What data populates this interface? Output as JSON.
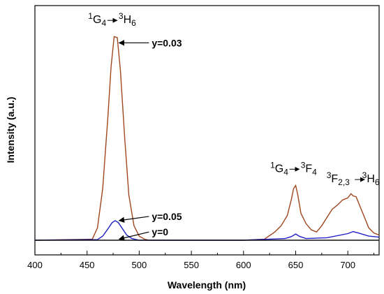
{
  "chart_data": {
    "type": "line",
    "title": "",
    "xlabel": "Wavelength (nm)",
    "ylabel": "Intensity (a.u.)",
    "xlim": [
      400,
      730
    ],
    "ylim": [
      0,
      1.0
    ],
    "xticks": [
      400,
      450,
      500,
      550,
      600,
      650,
      700
    ],
    "yticks_shown": false,
    "grid": false,
    "legend": "none",
    "series": [
      {
        "name": "y=0.03",
        "color": "#a0461e",
        "x": [
          400,
          455,
          460,
          465,
          470,
          473,
          476,
          479,
          482,
          486,
          490,
          495,
          500,
          505,
          510,
          520,
          600,
          620,
          630,
          636,
          642,
          646,
          648,
          650,
          652,
          655,
          660,
          665,
          670,
          675,
          680,
          685,
          690,
          695,
          700,
          703,
          705,
          708,
          712,
          716,
          720,
          725,
          730
        ],
        "y": [
          0.0,
          0.005,
          0.06,
          0.25,
          0.6,
          0.84,
          0.985,
          0.98,
          0.82,
          0.5,
          0.22,
          0.07,
          0.02,
          0.005,
          0.0,
          0.0,
          0.0,
          0.005,
          0.04,
          0.07,
          0.12,
          0.2,
          0.25,
          0.265,
          0.22,
          0.13,
          0.08,
          0.05,
          0.04,
          0.07,
          0.11,
          0.15,
          0.17,
          0.195,
          0.205,
          0.225,
          0.215,
          0.21,
          0.16,
          0.11,
          0.06,
          0.035,
          0.025
        ]
      },
      {
        "name": "y=0.05",
        "color": "#2020c8",
        "x": [
          400,
          460,
          465,
          470,
          474,
          477,
          480,
          484,
          488,
          493,
          500,
          600,
          640,
          646,
          650,
          654,
          660,
          680,
          700,
          705,
          710,
          720,
          730
        ],
        "y": [
          0.0,
          0.003,
          0.02,
          0.055,
          0.085,
          0.095,
          0.085,
          0.055,
          0.025,
          0.008,
          0.0,
          0.0,
          0.008,
          0.018,
          0.03,
          0.018,
          0.008,
          0.012,
          0.032,
          0.042,
          0.035,
          0.02,
          0.015
        ]
      },
      {
        "name": "y=0",
        "color": "#111111",
        "x": [
          400,
          730
        ],
        "y": [
          0.0,
          0.0
        ]
      }
    ],
    "annotations": [
      {
        "text": "y=0.03",
        "target_series": "y=0.03",
        "target_x": 478,
        "target_y": 0.955,
        "text_x": 512,
        "text_y": 0.955
      },
      {
        "text": "y=0.05",
        "target_series": "y=0.05",
        "target_x": 478,
        "target_y": 0.095,
        "text_x": 512,
        "text_y": 0.115
      },
      {
        "text": "y=0",
        "target_series": "y=0",
        "target_x": 478,
        "target_y": 0.005,
        "text_x": 512,
        "text_y": 0.04
      }
    ],
    "transition_labels": [
      {
        "main1": "G",
        "sup1": "1",
        "sub1": "4",
        "main2": "H",
        "sup2": "3",
        "sub2": "6",
        "x": 474,
        "y": 1.05
      },
      {
        "main1": "G",
        "sup1": "1",
        "sub1": "4",
        "main2": "F",
        "sup2": "3",
        "sub2": "4",
        "x": 648,
        "y": 0.33
      },
      {
        "main1": "F",
        "sup1": "3",
        "sub1": "2,3",
        "main2": "H",
        "sup2": "3",
        "sub2": "6",
        "x": 705,
        "y": 0.28
      }
    ]
  }
}
